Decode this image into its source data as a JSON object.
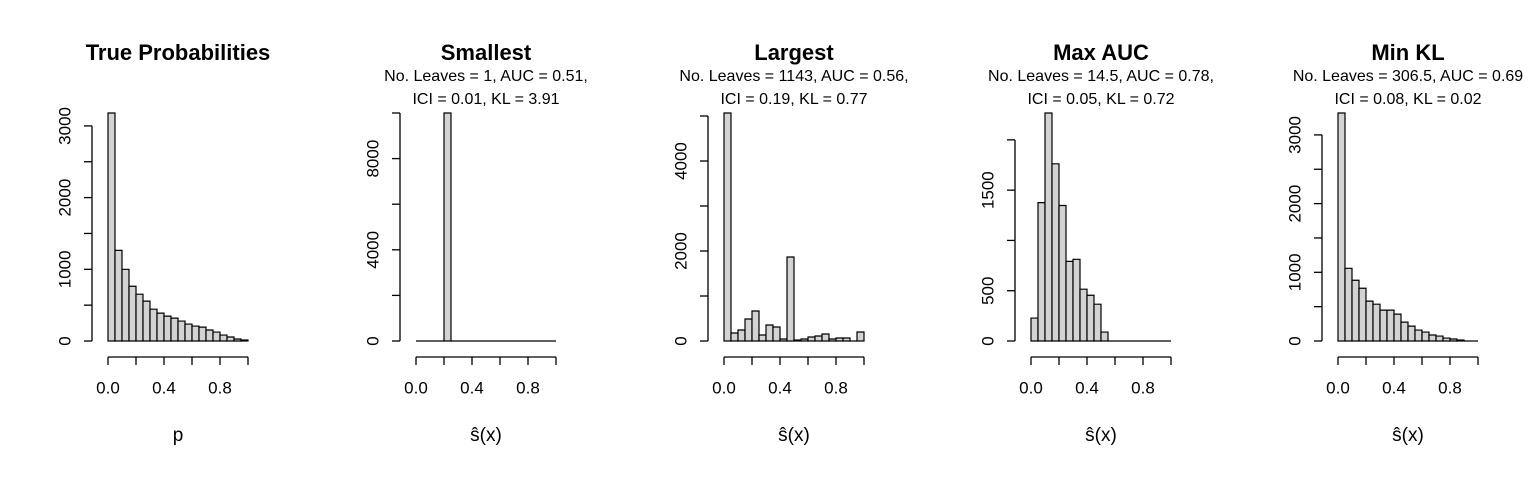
{
  "chart_data": [
    {
      "type": "histogram",
      "title": "True Probabilities",
      "xlabel": "p",
      "bins": [
        0,
        0.05,
        0.1,
        0.15,
        0.2,
        0.25,
        0.3,
        0.35,
        0.4,
        0.45,
        0.5,
        0.55,
        0.6,
        0.65,
        0.7,
        0.75,
        0.8,
        0.85,
        0.9,
        0.95,
        1
      ],
      "values": [
        3180,
        1264,
        1000,
        764,
        653,
        556,
        444,
        389,
        347,
        319,
        278,
        236,
        208,
        194,
        153,
        125,
        83,
        56,
        28,
        14
      ],
      "color": "#d3d3d3",
      "xlim": [
        0,
        1
      ],
      "ylim": [
        0,
        3180
      ],
      "xticks": [
        {
          "value": 0,
          "label": "0.0"
        },
        0.4,
        0.8
      ],
      "xminor": [
        0.2,
        0.6,
        1
      ],
      "yticks": [
        0,
        1000,
        2000,
        3000
      ],
      "yminor": [
        500,
        1500,
        2500
      ]
    },
    {
      "type": "histogram",
      "title": "Smallest",
      "subtitle": [
        "No. Leaves = 1, AUC = 0.51,",
        "ICI = 0.01, KL = 3.91"
      ],
      "xlabel": "ŝ(x)",
      "bins": [
        0,
        0.05,
        0.1,
        0.15,
        0.2,
        0.25,
        0.3,
        0.35,
        0.4,
        0.45,
        0.5,
        0.55,
        0.6,
        0.65,
        0.7,
        0.75,
        0.8,
        0.85,
        0.9,
        0.95,
        1
      ],
      "values": [
        0,
        0,
        0,
        0,
        10000,
        0,
        0,
        0,
        0,
        0,
        0,
        0,
        0,
        0,
        0,
        0,
        0,
        0,
        0,
        0
      ],
      "color": "#d3d3d3",
      "xlim": [
        0,
        1
      ],
      "ylim": [
        0,
        10000
      ],
      "xticks": [
        {
          "value": 0,
          "label": "0.0"
        },
        0.4,
        0.8
      ],
      "xminor": [
        0.2,
        0.6,
        1
      ],
      "yticks": [
        0,
        4000,
        8000
      ],
      "yminor": [
        2000,
        6000,
        10000
      ]
    },
    {
      "type": "histogram",
      "title": "Largest",
      "subtitle": [
        "No. Leaves = 1143, AUC = 0.56,",
        "ICI = 0.19, KL = 0.77"
      ],
      "xlabel": "ŝ(x)",
      "bins": [
        0,
        0.05,
        0.1,
        0.15,
        0.2,
        0.25,
        0.3,
        0.35,
        0.4,
        0.45,
        0.5,
        0.55,
        0.6,
        0.65,
        0.7,
        0.75,
        0.8,
        0.85,
        0.9,
        0.95,
        1
      ],
      "values": [
        5067,
        178,
        244,
        489,
        667,
        133,
        356,
        311,
        44,
        1867,
        22,
        44,
        89,
        111,
        156,
        44,
        67,
        67,
        0,
        200
      ],
      "color": "#d3d3d3",
      "xlim": [
        0,
        1
      ],
      "ylim": [
        0,
        5067
      ],
      "xticks": [
        {
          "value": 0,
          "label": "0.0"
        },
        0.4,
        0.8
      ],
      "xminor": [
        0.2,
        0.6,
        1
      ],
      "yticks": [
        0,
        2000,
        4000
      ],
      "yminor": [
        1000,
        3000,
        5000
      ]
    },
    {
      "type": "histogram",
      "title": "Max AUC",
      "subtitle": [
        "No. Leaves = 14.5, AUC = 0.78,",
        "ICI = 0.05, KL = 0.72"
      ],
      "xlabel": "ŝ(x)",
      "bins": [
        0,
        0.05,
        0.1,
        0.15,
        0.2,
        0.25,
        0.3,
        0.35,
        0.4,
        0.45,
        0.5,
        0.55,
        0.6,
        0.65,
        0.7,
        0.75,
        0.8,
        0.85,
        0.9,
        0.95,
        1
      ],
      "values": [
        228,
        1376,
        2267,
        1762,
        1347,
        792,
        812,
        515,
        455,
        366,
        89,
        0,
        0,
        0,
        0,
        0,
        0,
        0,
        0,
        0
      ],
      "color": "#d3d3d3",
      "xlim": [
        0,
        1
      ],
      "ylim": [
        0,
        2267
      ],
      "xticks": [
        {
          "value": 0,
          "label": "0.0"
        },
        0.4,
        0.8
      ],
      "xminor": [
        0.2,
        0.6,
        1
      ],
      "yticks": [
        0,
        500,
        1500
      ],
      "yminor": [
        1000,
        2000
      ]
    },
    {
      "type": "histogram",
      "title": "Min KL",
      "subtitle": [
        "No. Leaves = 306.5, AUC = 0.69",
        "ICI = 0.08, KL = 0.02"
      ],
      "xlabel": "ŝ(x)",
      "bins": [
        0,
        0.05,
        0.1,
        0.15,
        0.2,
        0.25,
        0.3,
        0.35,
        0.4,
        0.45,
        0.5,
        0.55,
        0.6,
        0.65,
        0.7,
        0.75,
        0.8,
        0.85,
        0.9,
        0.95,
        1
      ],
      "values": [
        3319,
        1058,
        884,
        768,
        580,
        536,
        449,
        449,
        391,
        275,
        217,
        159,
        130,
        87,
        72,
        43,
        29,
        14,
        0,
        0
      ],
      "color": "#d3d3d3",
      "xlim": [
        0,
        1
      ],
      "ylim": [
        0,
        3319
      ],
      "xticks": [
        {
          "value": 0,
          "label": "0.0"
        },
        0.4,
        0.8
      ],
      "xminor": [
        0.2,
        0.6,
        1
      ],
      "yticks": [
        0,
        1000,
        2000,
        3000
      ],
      "yminor": [
        500,
        1500,
        2500
      ]
    }
  ]
}
